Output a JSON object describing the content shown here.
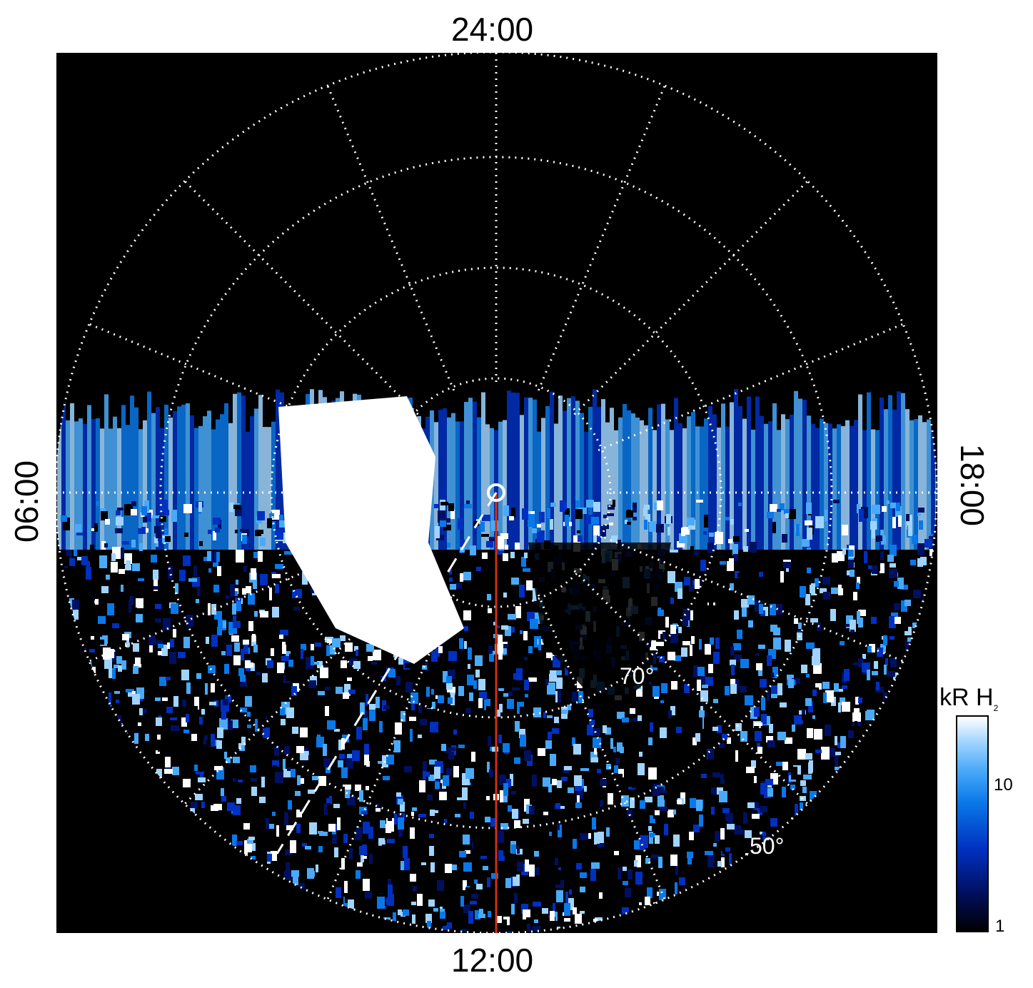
{
  "chart_data": {
    "type": "heatmap",
    "title": "",
    "projection": "polar (north-pole view)",
    "local_time_labels": {
      "top": "24:00",
      "bottom": "12:00",
      "left": "06:00",
      "right": "18:00"
    },
    "latitude_labels": [
      "70°",
      "50°"
    ],
    "colorbar": {
      "title": "kR H",
      "title_subscript": "2",
      "scale": "log",
      "ticks": [
        "10",
        "1"
      ],
      "range": [
        1,
        30
      ]
    },
    "grid": {
      "lat_rings": "dotted",
      "lt_meridians": "dotted",
      "meridian_count": 16
    },
    "overlays": {
      "red_line": "12:00 meridian",
      "white_dashed_line": "from pole toward lower-left"
    }
  },
  "colors": {
    "background": "#000000",
    "grid": "#ffffff",
    "red_line": "#d03010",
    "map_low": "#001060",
    "map_mid": "#0a78e8",
    "map_high": "#ffffff"
  }
}
